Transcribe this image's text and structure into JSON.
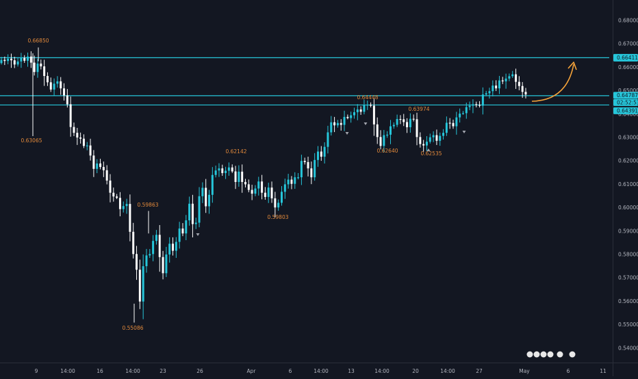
{
  "chart_data": {
    "type": "candlestick",
    "title": "",
    "xlabel": "",
    "ylabel": "",
    "ylim": [
      0.5345,
      0.6885
    ],
    "y_ticks": [
      "0.68000",
      "0.67000",
      "0.66000",
      "0.65000",
      "0.64000",
      "0.63000",
      "0.62000",
      "0.61000",
      "0.60000",
      "0.59000",
      "0.58000",
      "0.57000",
      "0.56000",
      "0.55000",
      "0.54000"
    ],
    "x_ticks": [
      "9",
      "14:00",
      "16",
      "14:00",
      "23",
      "26",
      "Apr",
      "6",
      "14:00",
      "13",
      "14:00",
      "20",
      "14:00",
      "27",
      "May",
      "6",
      "11"
    ],
    "series": [
      {
        "values_close": [
          0.6632,
          0.6627,
          0.6637,
          0.663,
          0.6612,
          0.6625,
          0.664,
          0.6628,
          0.6646,
          0.662,
          0.658,
          0.6616,
          0.6604,
          0.6563,
          0.6536,
          0.6505,
          0.653,
          0.654,
          0.651,
          0.648,
          0.6442,
          0.6345,
          0.632,
          0.63,
          0.6295,
          0.6264,
          0.6266,
          0.6223,
          0.6166,
          0.6189,
          0.6174,
          0.616,
          0.6116,
          0.6064,
          0.6048,
          0.6042,
          0.5994,
          0.6007,
          0.6016,
          0.5897,
          0.5802,
          0.5735,
          0.5599,
          0.575,
          0.5796,
          0.5802,
          0.5858,
          0.5884,
          0.5789,
          0.572,
          0.58,
          0.5846,
          0.5816,
          0.5854,
          0.5911,
          0.589,
          0.5946,
          0.6017,
          0.593,
          0.5936,
          0.6049,
          0.6085,
          0.6006,
          0.6055,
          0.614,
          0.6159,
          0.6168,
          0.6148,
          0.6158,
          0.6172,
          0.6155,
          0.611,
          0.6154,
          0.611,
          0.61,
          0.6076,
          0.606,
          0.6082,
          0.6112,
          0.6064,
          0.6046,
          0.6086,
          0.604,
          0.6001,
          0.6021,
          0.6068,
          0.61,
          0.612,
          0.6102,
          0.613,
          0.613,
          0.62,
          0.6195,
          0.6168,
          0.613,
          0.6204,
          0.624,
          0.6218,
          0.626,
          0.6322,
          0.6365,
          0.6352,
          0.6362,
          0.6354,
          0.6388,
          0.6383,
          0.6395,
          0.6408,
          0.642,
          0.641,
          0.644,
          0.644,
          0.6436,
          0.6356,
          0.6302,
          0.6264,
          0.631,
          0.6312,
          0.6348,
          0.6354,
          0.6379,
          0.6378,
          0.6366,
          0.6344,
          0.638,
          0.6378,
          0.6302,
          0.6272,
          0.6266,
          0.6282,
          0.6301,
          0.631,
          0.6286,
          0.6307,
          0.632,
          0.6363,
          0.6362,
          0.6348,
          0.6386,
          0.6402,
          0.6404,
          0.643,
          0.6436,
          0.6442,
          0.644,
          0.6436,
          0.6484,
          0.6489,
          0.6498,
          0.6522,
          0.651,
          0.6544,
          0.654,
          0.6552,
          0.6562,
          0.657,
          0.6538,
          0.652,
          0.6495,
          0.6484
        ]
      }
    ],
    "annotations": [
      {
        "label": "0.66850",
        "kind": "high"
      },
      {
        "label": "0.63065",
        "kind": "low"
      },
      {
        "label": "0.59863",
        "kind": "high"
      },
      {
        "label": "0.55086",
        "kind": "low"
      },
      {
        "label": "0.62142",
        "kind": "high"
      },
      {
        "label": "0.59803",
        "kind": "low"
      },
      {
        "label": "0.64448",
        "kind": "high"
      },
      {
        "label": "0.62640",
        "kind": "low"
      },
      {
        "label": "0.63974",
        "kind": "high"
      },
      {
        "label": "0.62535",
        "kind": "low"
      }
    ],
    "horizontal_lines": [
      {
        "label": "0.66411",
        "value": 0.66411
      },
      {
        "label": "0.64787",
        "value": 0.64787
      },
      {
        "label": "0.64391",
        "value": 0.64391
      }
    ],
    "price_tag": {
      "time": "02:52:53"
    },
    "forecast": "up-arrow"
  },
  "colors": {
    "background": "#131722",
    "up": "#26c6da",
    "down": "#ffffff",
    "line": "#26c6da",
    "annotation": "#e2893b",
    "arrow": "#f7a43a",
    "axis_text": "#b2b5be",
    "tag_text": "#131722"
  }
}
